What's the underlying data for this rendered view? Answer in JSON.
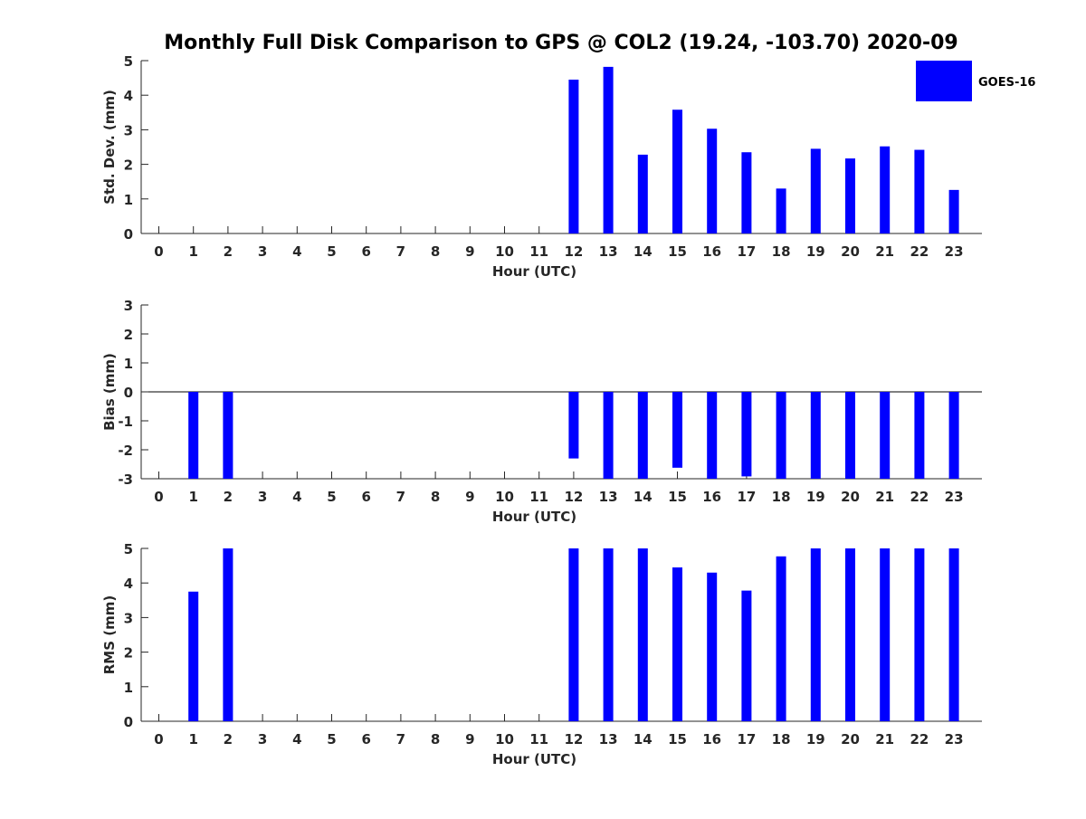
{
  "figure": {
    "title": "Monthly Full Disk Comparison to GPS @ COL2 (19.24, -103.70) 2020-09",
    "legend": {
      "label": "GOES-16",
      "color": "#0000ff",
      "placement": "top-right"
    },
    "bar_color": "#0000ff"
  },
  "chart_data": [
    {
      "type": "bar",
      "categories": [
        "0",
        "1",
        "2",
        "3",
        "4",
        "5",
        "6",
        "7",
        "8",
        "9",
        "10",
        "11",
        "12",
        "13",
        "14",
        "15",
        "16",
        "17",
        "18",
        "19",
        "20",
        "21",
        "22",
        "23"
      ],
      "series": [
        {
          "name": "GOES-16",
          "values": [
            null,
            null,
            null,
            null,
            null,
            null,
            null,
            null,
            null,
            null,
            null,
            null,
            4.45,
            4.82,
            2.28,
            3.58,
            3.03,
            2.35,
            1.3,
            2.45,
            2.17,
            2.52,
            2.42,
            1.26
          ]
        }
      ],
      "xlabel": "Hour (UTC)",
      "ylabel": "Std. Dev. (mm)",
      "ylim": [
        0,
        5
      ],
      "yticks": [
        "0",
        "1",
        "2",
        "3",
        "4",
        "5"
      ],
      "grid": false
    },
    {
      "type": "bar",
      "categories": [
        "0",
        "1",
        "2",
        "3",
        "4",
        "5",
        "6",
        "7",
        "8",
        "9",
        "10",
        "11",
        "12",
        "13",
        "14",
        "15",
        "16",
        "17",
        "18",
        "19",
        "20",
        "21",
        "22",
        "23"
      ],
      "series": [
        {
          "name": "GOES-16",
          "values": [
            null,
            -3.0,
            -3.0,
            null,
            null,
            null,
            null,
            null,
            null,
            null,
            null,
            null,
            -2.3,
            -3.0,
            -3.0,
            -2.62,
            -3.0,
            -2.92,
            -3.0,
            -3.0,
            -3.0,
            -3.0,
            -3.0,
            -3.0
          ]
        }
      ],
      "xlabel": "Hour (UTC)",
      "ylabel": "Bias (mm)",
      "ylim": [
        -3,
        3
      ],
      "yticks": [
        "-3",
        "-2",
        "-1",
        "0",
        "1",
        "2",
        "3"
      ],
      "zero_line": true,
      "grid": false
    },
    {
      "type": "bar",
      "categories": [
        "0",
        "1",
        "2",
        "3",
        "4",
        "5",
        "6",
        "7",
        "8",
        "9",
        "10",
        "11",
        "12",
        "13",
        "14",
        "15",
        "16",
        "17",
        "18",
        "19",
        "20",
        "21",
        "22",
        "23"
      ],
      "series": [
        {
          "name": "GOES-16",
          "values": [
            null,
            3.75,
            5.0,
            null,
            null,
            null,
            null,
            null,
            null,
            null,
            null,
            null,
            5.0,
            5.0,
            5.0,
            4.45,
            4.3,
            3.78,
            4.77,
            5.0,
            5.0,
            5.0,
            5.0,
            5.0
          ]
        }
      ],
      "xlabel": "Hour (UTC)",
      "ylabel": "RMS (mm)",
      "ylim": [
        0,
        5
      ],
      "yticks": [
        "0",
        "1",
        "2",
        "3",
        "4",
        "5"
      ],
      "grid": false
    }
  ]
}
